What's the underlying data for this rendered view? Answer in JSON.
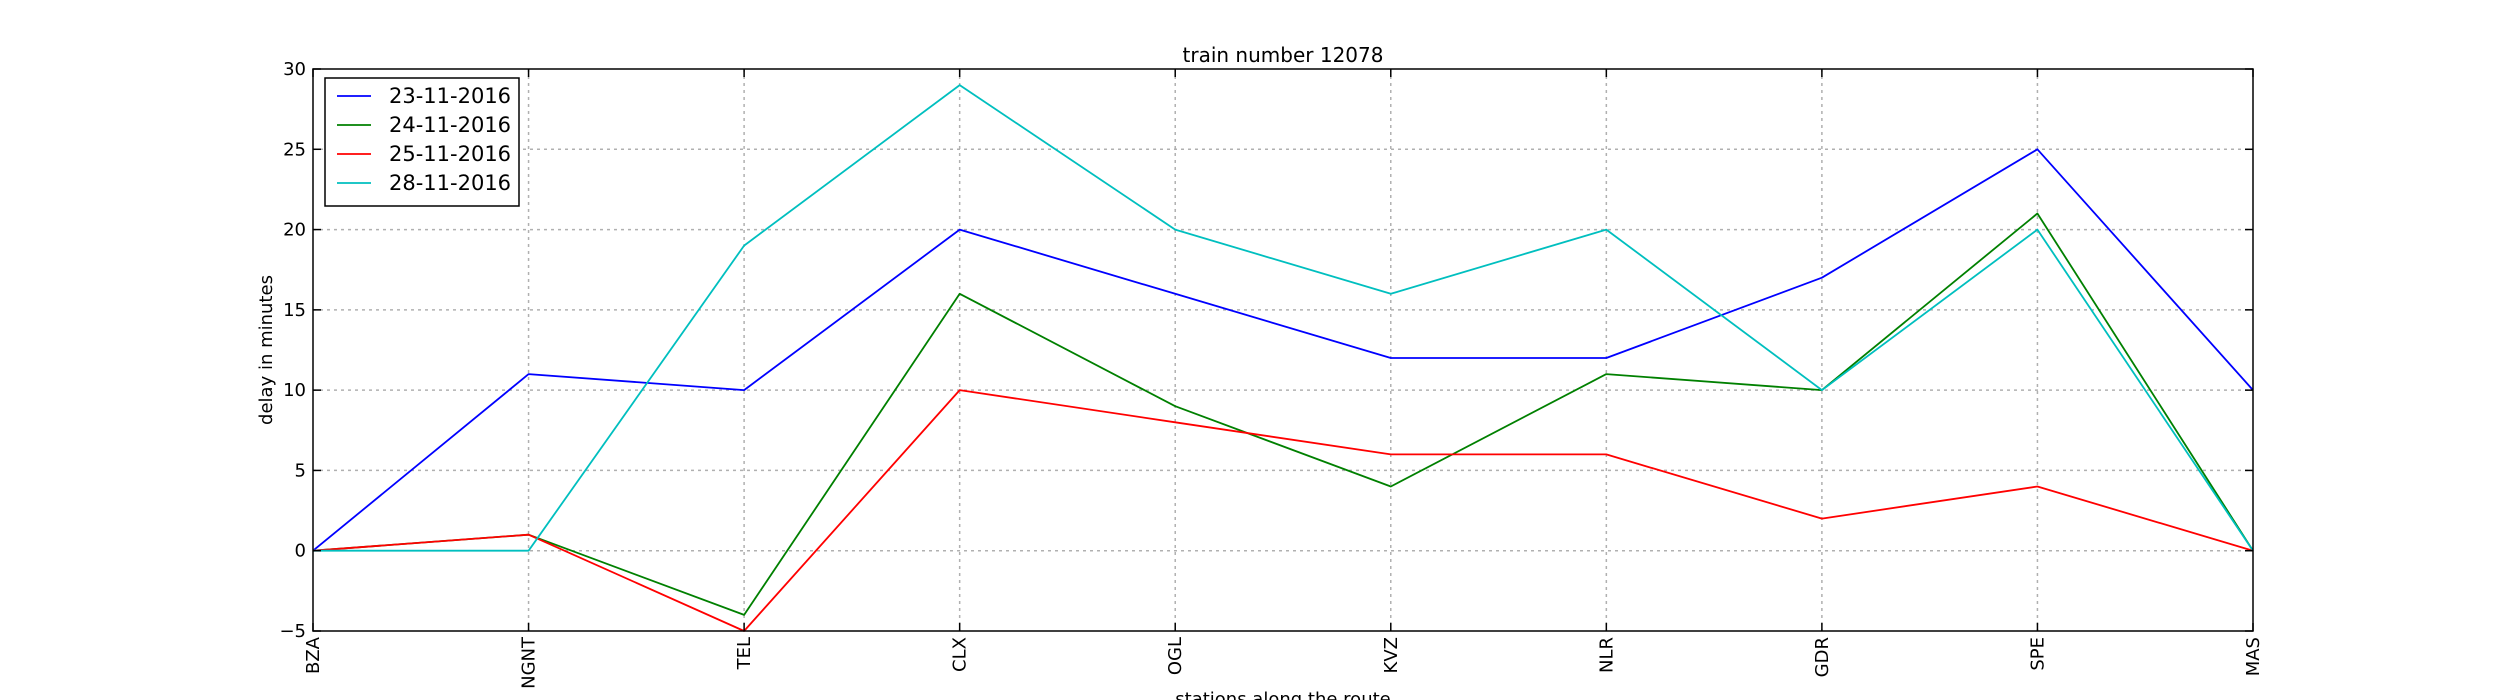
{
  "chart_data": {
    "type": "line",
    "title": "train number 12078",
    "xlabel": "stations along the route",
    "ylabel": "delay in minutes",
    "categories": [
      "BZA",
      "NGNT",
      "TEL",
      "CLX",
      "OGL",
      "KVZ",
      "NLR",
      "GDR",
      "SPE",
      "MAS"
    ],
    "ylim": [
      -5,
      30
    ],
    "yticks": [
      -5,
      0,
      5,
      10,
      15,
      20,
      25,
      30
    ],
    "grid": true,
    "legend_position": "top-left",
    "series": [
      {
        "name": "23-11-2016",
        "color": "#0000ff",
        "values": [
          0,
          11,
          10,
          20,
          16,
          12,
          12,
          17,
          25,
          10
        ]
      },
      {
        "name": "24-11-2016",
        "color": "#008000",
        "values": [
          0,
          1,
          -4,
          16,
          9,
          4,
          11,
          10,
          21,
          0
        ]
      },
      {
        "name": "25-11-2016",
        "color": "#ff0000",
        "values": [
          0,
          1,
          -5,
          10,
          8,
          6,
          6,
          2,
          4,
          0
        ]
      },
      {
        "name": "28-11-2016",
        "color": "#00bfbf",
        "values": [
          0,
          0,
          19,
          29,
          20,
          16,
          20,
          10,
          20,
          0
        ]
      }
    ]
  }
}
